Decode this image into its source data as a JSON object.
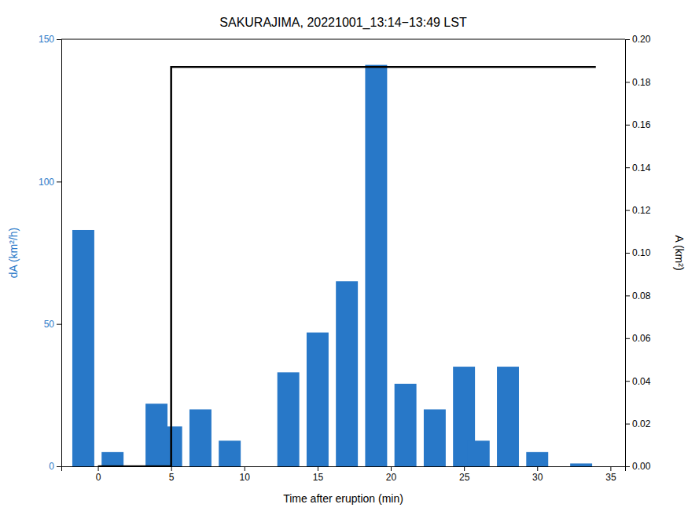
{
  "chart_data": {
    "type": "bar",
    "title": "SAKURAJIMA, 20221001_13:14−13:49 LST",
    "x_label": "Time after eruption (min)",
    "y_label": "dA (km²/h)",
    "y2_label": "A (km²)",
    "series": [
      {
        "type": "bar",
        "color": "#2878C8",
        "x": [
          -1,
          1,
          4,
          5,
          7,
          9,
          13,
          15,
          17,
          19,
          21,
          23,
          25,
          26,
          28,
          30,
          33
        ],
        "values": [
          83,
          5,
          22,
          14,
          20,
          9,
          33,
          47,
          65,
          141,
          29,
          20,
          35,
          9,
          35,
          5,
          1
        ]
      },
      {
        "type": "line",
        "axis": "y2",
        "color": "black",
        "x": [
          0,
          5,
          5,
          34
        ],
        "values": [
          0,
          0,
          0.187,
          0.187
        ]
      }
    ],
    "xlim": [
      -2.5,
      36
    ],
    "xticks": [
      0,
      5,
      10,
      15,
      20,
      25,
      30,
      35
    ],
    "ylim": [
      0,
      150
    ],
    "yticks": [
      0,
      50,
      100,
      150
    ],
    "y2lim": [
      0,
      0.2
    ],
    "y2ticks": [
      {
        "value": 0,
        "label": "0.00"
      },
      {
        "value": 0.02,
        "label": "0.02"
      },
      {
        "value": 0.04,
        "label": "0.04"
      },
      {
        "value": 0.06,
        "label": "0.06"
      },
      {
        "value": 0.08,
        "label": "0.08"
      },
      {
        "value": 0.1,
        "label": "0.10"
      },
      {
        "value": 0.12,
        "label": "0.12"
      },
      {
        "value": 0.14,
        "label": "0.14"
      },
      {
        "value": 0.16,
        "label": "0.16"
      },
      {
        "value": 0.18,
        "label": "0.18"
      },
      {
        "value": 0.2,
        "label": "0.20"
      }
    ]
  }
}
